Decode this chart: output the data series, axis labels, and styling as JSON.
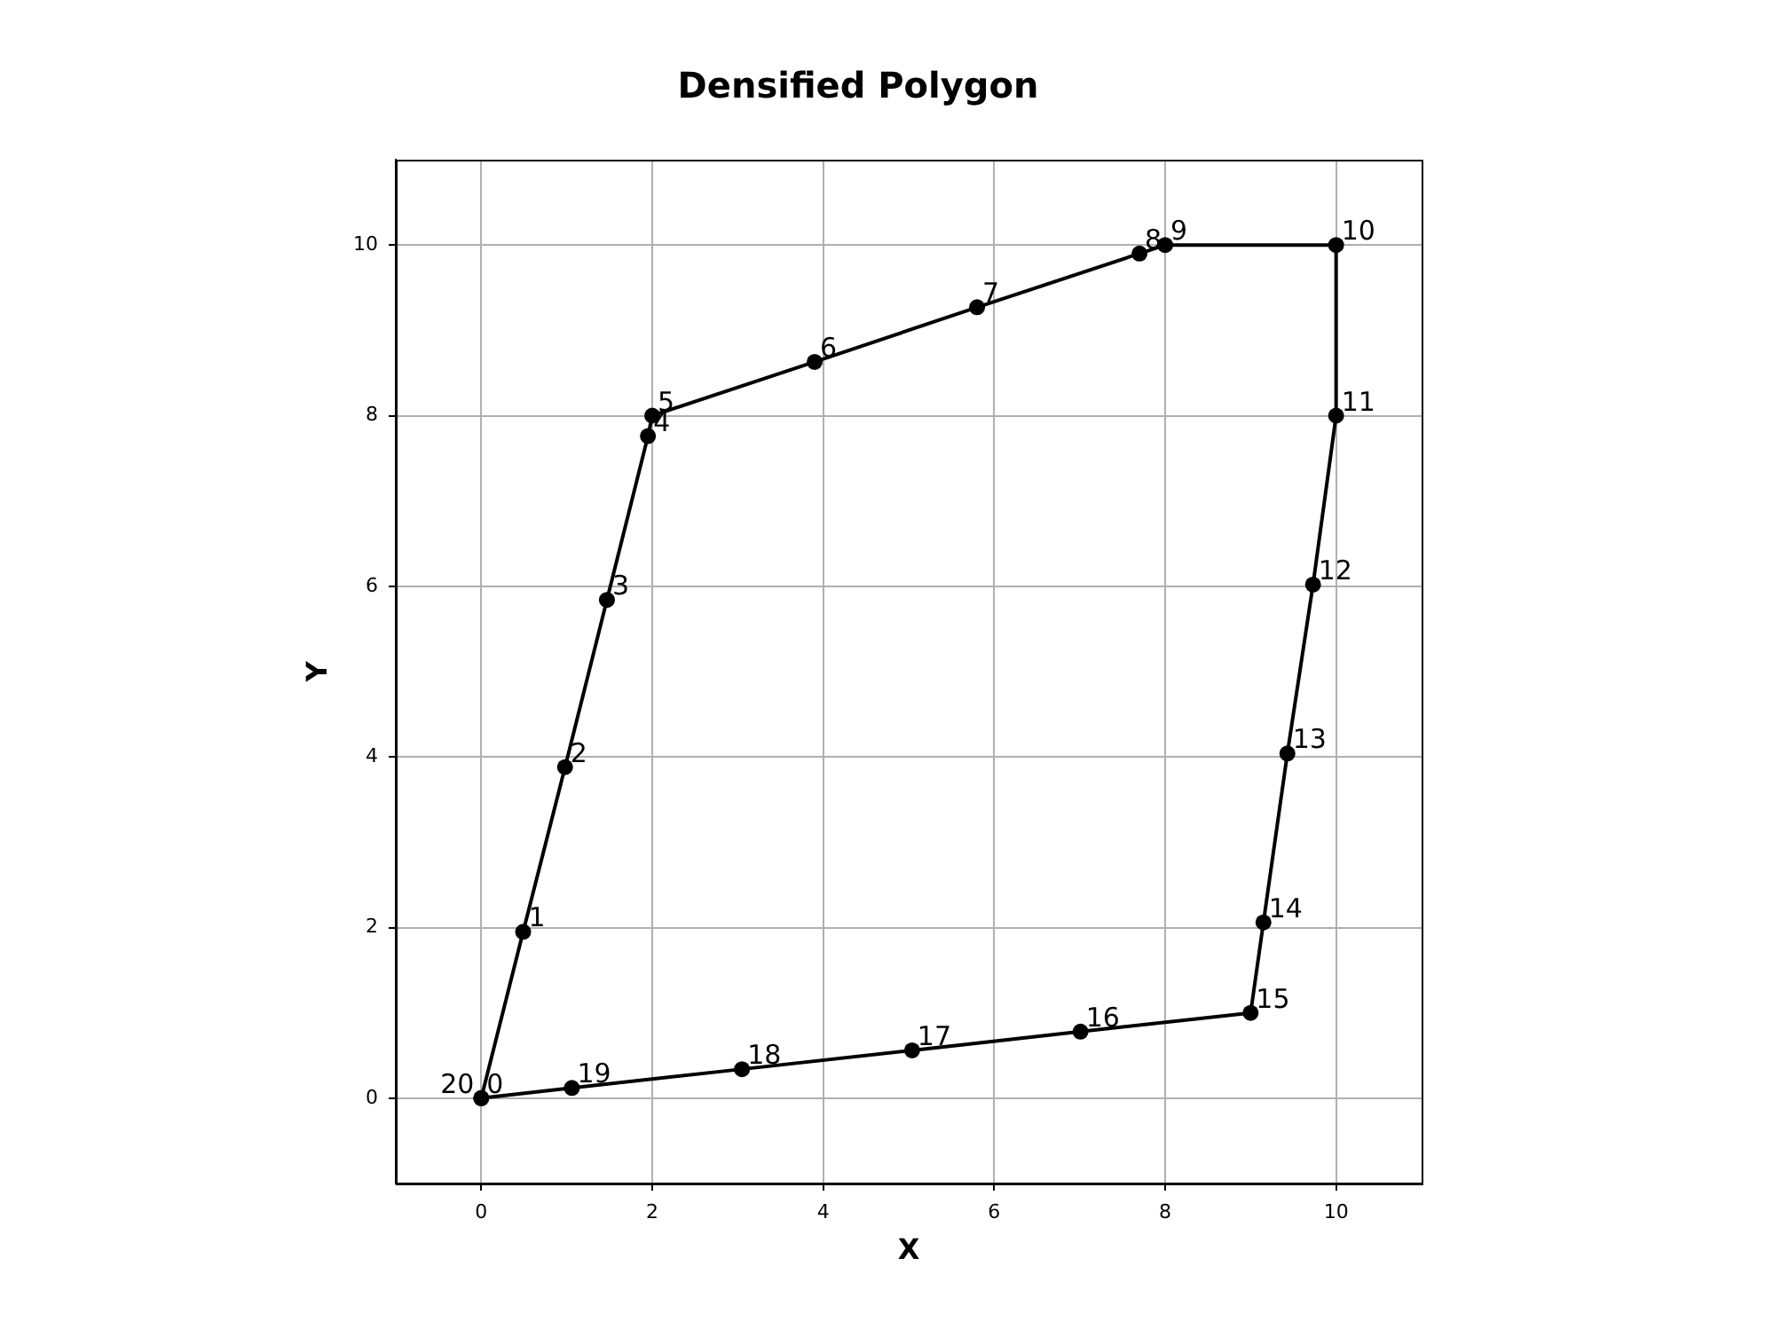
{
  "chart_data": {
    "type": "scatter",
    "title": "Densified Polygon",
    "xlabel": "X",
    "ylabel": "Y",
    "x": [
      0,
      0.49,
      0.98,
      1.47,
      1.95,
      2,
      3.9,
      5.8,
      7.7,
      8,
      10,
      10,
      9.73,
      9.43,
      9.15,
      9,
      7.01,
      5.04,
      3.05,
      1.06,
      0
    ],
    "values": [
      0,
      1.95,
      3.88,
      5.84,
      7.76,
      8,
      8.63,
      9.27,
      9.9,
      10,
      10,
      8,
      6.02,
      4.04,
      2.06,
      1,
      0.78,
      0.56,
      0.34,
      0.12,
      0
    ],
    "annotations": [
      {
        "text": "0",
        "x": 0,
        "y": 0
      },
      {
        "text": "1",
        "x": 0.49,
        "y": 1.95
      },
      {
        "text": "2",
        "x": 0.98,
        "y": 3.88
      },
      {
        "text": "3",
        "x": 1.47,
        "y": 5.84
      },
      {
        "text": "4",
        "x": 1.95,
        "y": 7.76
      },
      {
        "text": "5",
        "x": 2,
        "y": 8
      },
      {
        "text": "6",
        "x": 3.9,
        "y": 8.63
      },
      {
        "text": "7",
        "x": 5.8,
        "y": 9.27
      },
      {
        "text": "8",
        "x": 7.7,
        "y": 9.9
      },
      {
        "text": "9",
        "x": 8,
        "y": 10
      },
      {
        "text": "10",
        "x": 10,
        "y": 10
      },
      {
        "text": "11",
        "x": 10,
        "y": 8
      },
      {
        "text": "12",
        "x": 9.73,
        "y": 6.02
      },
      {
        "text": "13",
        "x": 9.43,
        "y": 4.04
      },
      {
        "text": "14",
        "x": 9.15,
        "y": 2.06
      },
      {
        "text": "15",
        "x": 9,
        "y": 1
      },
      {
        "text": "16",
        "x": 7.01,
        "y": 0.78
      },
      {
        "text": "17",
        "x": 5.04,
        "y": 0.56
      },
      {
        "text": "18",
        "x": 3.05,
        "y": 0.34
      },
      {
        "text": "19",
        "x": 1.06,
        "y": 0.12
      },
      {
        "text": "20",
        "x": 0,
        "y": 0
      }
    ],
    "color": "#000000",
    "marker": "circle",
    "line_style": "solid",
    "xlim": [
      -1,
      11
    ],
    "ylim": [
      -1,
      11
    ],
    "xticks": [
      0,
      2,
      4,
      6,
      8,
      10
    ],
    "yticks": [
      0,
      2,
      4,
      6,
      8,
      10
    ],
    "grid": true
  }
}
